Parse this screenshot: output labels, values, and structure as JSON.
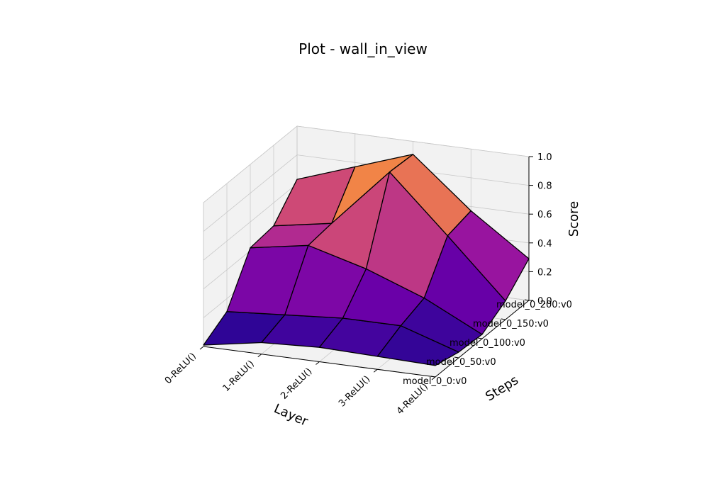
{
  "chart_data": {
    "type": "surface3d",
    "title": "Plot - wall_in_view",
    "xlabel": "Layer",
    "ylabel": "Steps",
    "zlabel": "Score",
    "x_categories": [
      "0-ReLU()",
      "1-ReLU()",
      "2-ReLU()",
      "3-ReLU()",
      "4-ReLU()"
    ],
    "y_categories": [
      "model_0_0:v0",
      "model_0_50:v0",
      "model_0_100:v0",
      "model_0_150:v0",
      "model_0_200:v0"
    ],
    "z_ticks": [
      "0.0",
      "0.2",
      "0.4",
      "0.6",
      "0.8",
      "1.0"
    ],
    "zlim": [
      0,
      1
    ],
    "colormap": "plasma",
    "grid": true,
    "z_values": [
      [
        0.01,
        0.11,
        0.42,
        0.44,
        0.63
      ],
      [
        0.08,
        0.14,
        0.49,
        0.51,
        0.77
      ],
      [
        0.1,
        0.17,
        0.38,
        0.92,
        0.91
      ],
      [
        0.09,
        0.17,
        0.23,
        0.53,
        0.57
      ],
      [
        0.08,
        0.04,
        0.03,
        0.13,
        0.29
      ]
    ]
  }
}
